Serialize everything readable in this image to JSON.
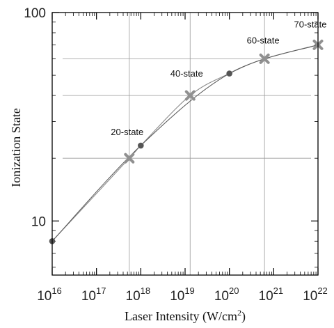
{
  "chart_data": {
    "type": "line",
    "title": "",
    "xlabel": "Laser Intensity (W/cm",
    "xlabel_sup": "2",
    "xlabel_close": ")",
    "ylabel": "Ionization State",
    "xscale": "log",
    "yscale": "log",
    "xlim": [
      1e+16,
      1e+22
    ],
    "ylim": [
      5.5,
      100
    ],
    "x_ticks": [
      {
        "base": "10",
        "exp": "16",
        "value": 1e+16
      },
      {
        "base": "10",
        "exp": "17",
        "value": 1e+17
      },
      {
        "base": "10",
        "exp": "18",
        "value": 1e+18
      },
      {
        "base": "10",
        "exp": "19",
        "value": 1e+19
      },
      {
        "base": "10",
        "exp": "20",
        "value": 1e+20
      },
      {
        "base": "10",
        "exp": "21",
        "value": 1e+21
      },
      {
        "base": "10",
        "exp": "22",
        "value": 1e+22
      }
    ],
    "y_ticks": [
      {
        "label": "10",
        "value": 10
      },
      {
        "label": "100",
        "value": 100
      }
    ],
    "grid": true,
    "grid_x": [
      5.5e+17,
      1.3e+19,
      6.2e+20
    ],
    "grid_y": [
      20,
      40,
      60
    ],
    "series": [
      {
        "marker": "circle",
        "color": "#555555",
        "x": [
          1e+16,
          1e+18,
          1e+20
        ],
        "y": [
          8,
          23,
          51
        ]
      },
      {
        "marker": "x",
        "color": "#909090",
        "x": [
          5.5e+17,
          1.3e+19,
          6.2e+20,
          1e+22
        ],
        "y": [
          20,
          40,
          60,
          70
        ]
      }
    ],
    "annotations": [
      {
        "text": "20-state",
        "x": 5.5e+17,
        "y": 20
      },
      {
        "text": "40-state",
        "x": 1.3e+19,
        "y": 40
      },
      {
        "text": "60-state",
        "x": 6.2e+20,
        "y": 60
      },
      {
        "text": "70-state",
        "x": 1e+22,
        "y": 70
      }
    ]
  }
}
